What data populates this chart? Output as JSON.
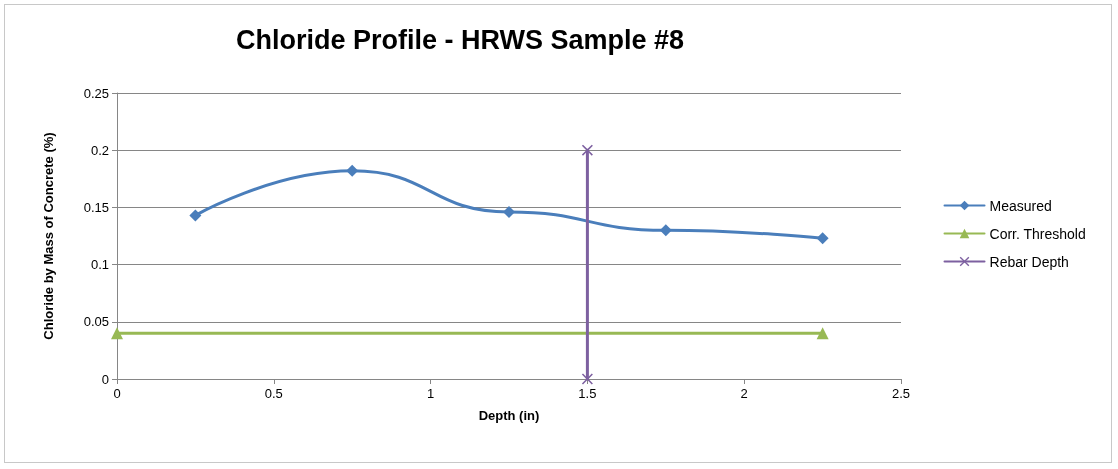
{
  "chart_data": {
    "type": "line",
    "title": "Chloride Profile - HRWS Sample #8",
    "xlabel": "Depth (in)",
    "ylabel": "Chloride by Mass of Concrete (%)",
    "xlim": [
      0,
      2.5
    ],
    "xticks": [
      0,
      0.5,
      1,
      1.5,
      2,
      2.5
    ],
    "ylim": [
      0,
      0.25
    ],
    "yticks": [
      0,
      0.05,
      0.1,
      0.15,
      0.2,
      0.25
    ],
    "grid": "y",
    "legend": "right",
    "line_style": "solid",
    "series": [
      {
        "name": "Measured",
        "color": "#4a7ebb",
        "marker": "diamond",
        "x": [
          0.25,
          0.75,
          1.25,
          1.75,
          2.25
        ],
        "values": [
          0.143,
          0.182,
          0.146,
          0.13,
          0.123
        ]
      },
      {
        "name": "Corr. Threshold",
        "color": "#98b954",
        "marker": "triangle",
        "x": [
          0,
          2.25
        ],
        "values": [
          0.04,
          0.04
        ]
      },
      {
        "name": "Rebar Depth",
        "color": "#7d60a0",
        "marker": "cross",
        "x": [
          1.5,
          1.5
        ],
        "values": [
          0,
          0.2
        ]
      }
    ]
  }
}
